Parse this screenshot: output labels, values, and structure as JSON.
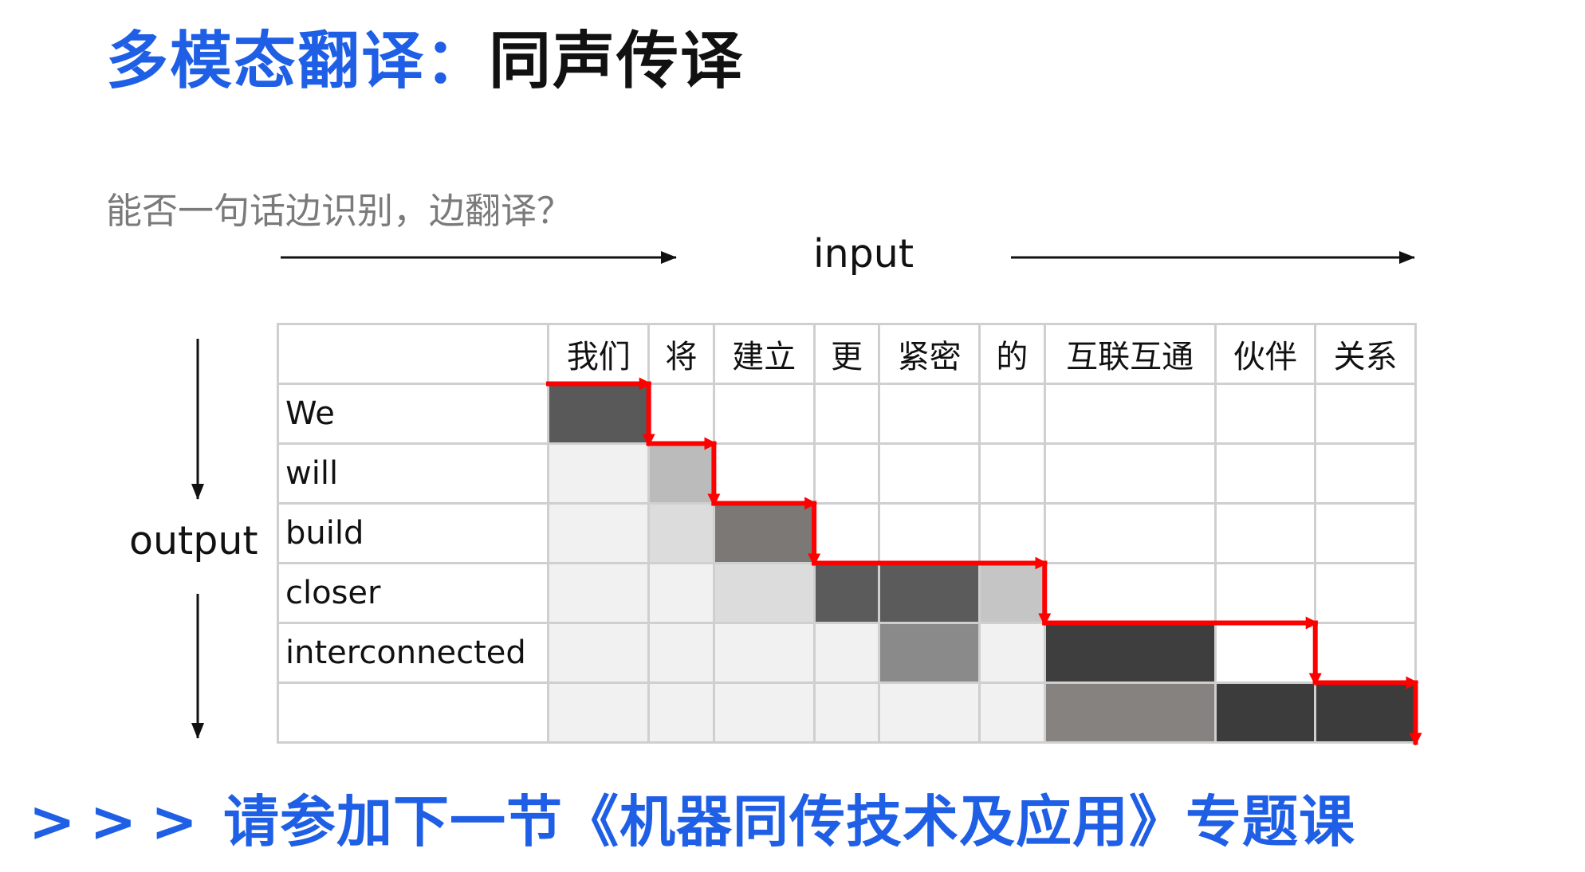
{
  "title": {
    "highlight": "多模态翻译：",
    "rest": "同声传译"
  },
  "subtitle": "能否一句话边识别，边翻译？",
  "axes": {
    "input_label": "input",
    "output_label": "output"
  },
  "grid": {
    "columns": [
      "我们",
      "将",
      "建立",
      "更",
      "紧密",
      "的",
      "互联互通",
      "伙伴",
      "关系"
    ],
    "rows": [
      "We",
      "will",
      "build",
      "closer",
      "interconnected",
      ""
    ],
    "col_widths": [
      2.7,
      1,
      0.65,
      1,
      0.65,
      1,
      0.65,
      1.7,
      1,
      1
    ],
    "cell_shades": [
      [
        "#595959",
        "#ffffff",
        "#ffffff",
        "#ffffff",
        "#ffffff",
        "#ffffff",
        "#ffffff",
        "#ffffff",
        "#ffffff"
      ],
      [
        "#f1f1f1",
        "#bcbbbb",
        "#ffffff",
        "#ffffff",
        "#ffffff",
        "#ffffff",
        "#ffffff",
        "#ffffff",
        "#ffffff"
      ],
      [
        "#f1f1f1",
        "#dcdcdc",
        "#7b7876",
        "#ffffff",
        "#ffffff",
        "#ffffff",
        "#ffffff",
        "#ffffff",
        "#ffffff"
      ],
      [
        "#f1f1f1",
        "#f1f1f1",
        "#dcdcdc",
        "#5b5b5b",
        "#5b5b5b",
        "#c5c5c5",
        "#ffffff",
        "#ffffff",
        "#ffffff"
      ],
      [
        "#f1f1f1",
        "#f1f1f1",
        "#f1f1f1",
        "#f1f1f1",
        "#8a8a8a",
        "#f1f1f1",
        "#3e3e3e",
        "#ffffff",
        "#ffffff"
      ],
      [
        "#f1f1f1",
        "#f1f1f1",
        "#f1f1f1",
        "#f1f1f1",
        "#f1f1f1",
        "#f1f1f1",
        "#858280",
        "#3c3c3c",
        "#3c3c3c"
      ]
    ],
    "path": [
      [
        0,
        0
      ],
      [
        1,
        0
      ],
      [
        1,
        1
      ],
      [
        2,
        1
      ],
      [
        2,
        2
      ],
      [
        3,
        2
      ],
      [
        3,
        3
      ],
      [
        6,
        3
      ],
      [
        6,
        4
      ],
      [
        8,
        4
      ],
      [
        8,
        5
      ],
      [
        9,
        5
      ],
      [
        9,
        6
      ]
    ],
    "path_color": "#ff0000"
  },
  "footer": {
    "chevrons": ">>>",
    "text": "请参加下一节《机器同传技术及应用》专题课"
  },
  "colors": {
    "accent": "#1f5fe6",
    "path": "#ff0000"
  }
}
